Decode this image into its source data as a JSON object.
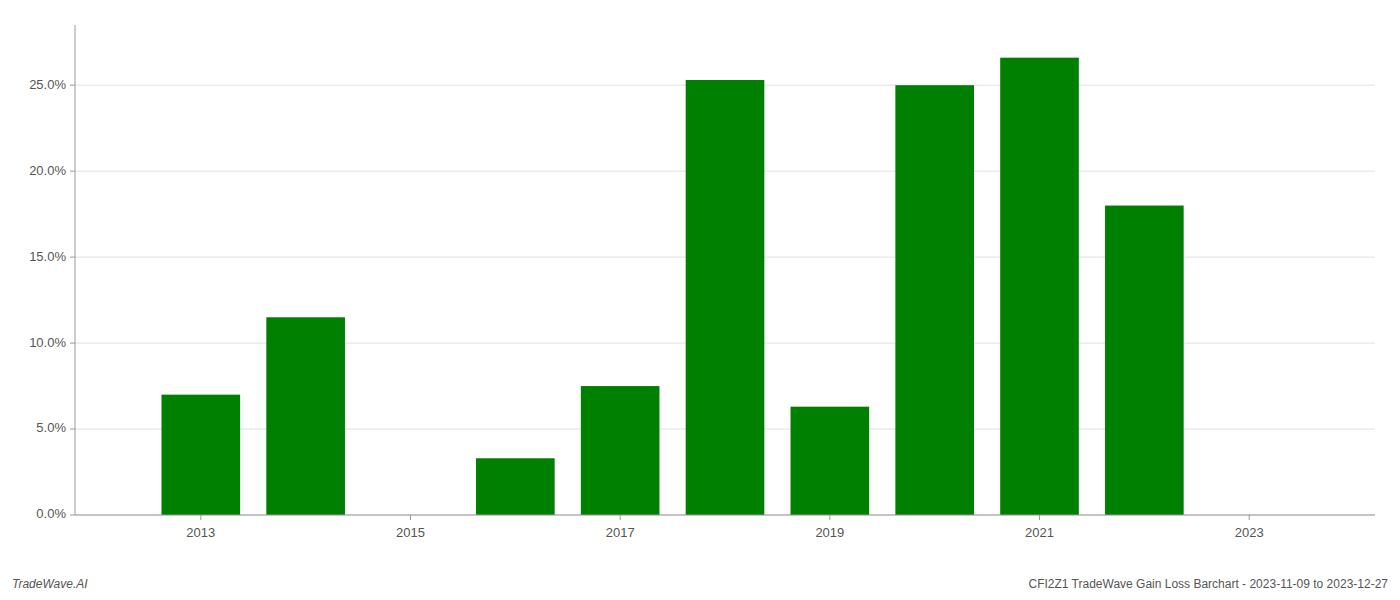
{
  "chart_data": {
    "type": "bar",
    "x": [
      2013,
      2014,
      2015,
      2016,
      2017,
      2018,
      2019,
      2020,
      2021,
      2022,
      2023
    ],
    "values": [
      0.07,
      0.115,
      0.0,
      0.033,
      0.075,
      0.253,
      0.063,
      0.25,
      0.266,
      0.18,
      0.0
    ],
    "color": "#008000",
    "ylim": [
      0,
      0.285
    ],
    "yticks": [
      {
        "value": 0.0,
        "label": "0.0%"
      },
      {
        "value": 0.05,
        "label": "5.0%"
      },
      {
        "value": 0.1,
        "label": "10.0%"
      },
      {
        "value": 0.15,
        "label": "15.0%"
      },
      {
        "value": 0.2,
        "label": "20.0%"
      },
      {
        "value": 0.25,
        "label": "25.0%"
      }
    ],
    "xlim": [
      2011.8,
      2024.2
    ],
    "xticks": [
      2013,
      2015,
      2017,
      2019,
      2021,
      2023
    ],
    "grid": true,
    "annotations": [
      "TradeWave.AI",
      "CFI2Z1 TradeWave Gain Loss Barchart - 2023-11-09 to 2023-12-27"
    ]
  }
}
